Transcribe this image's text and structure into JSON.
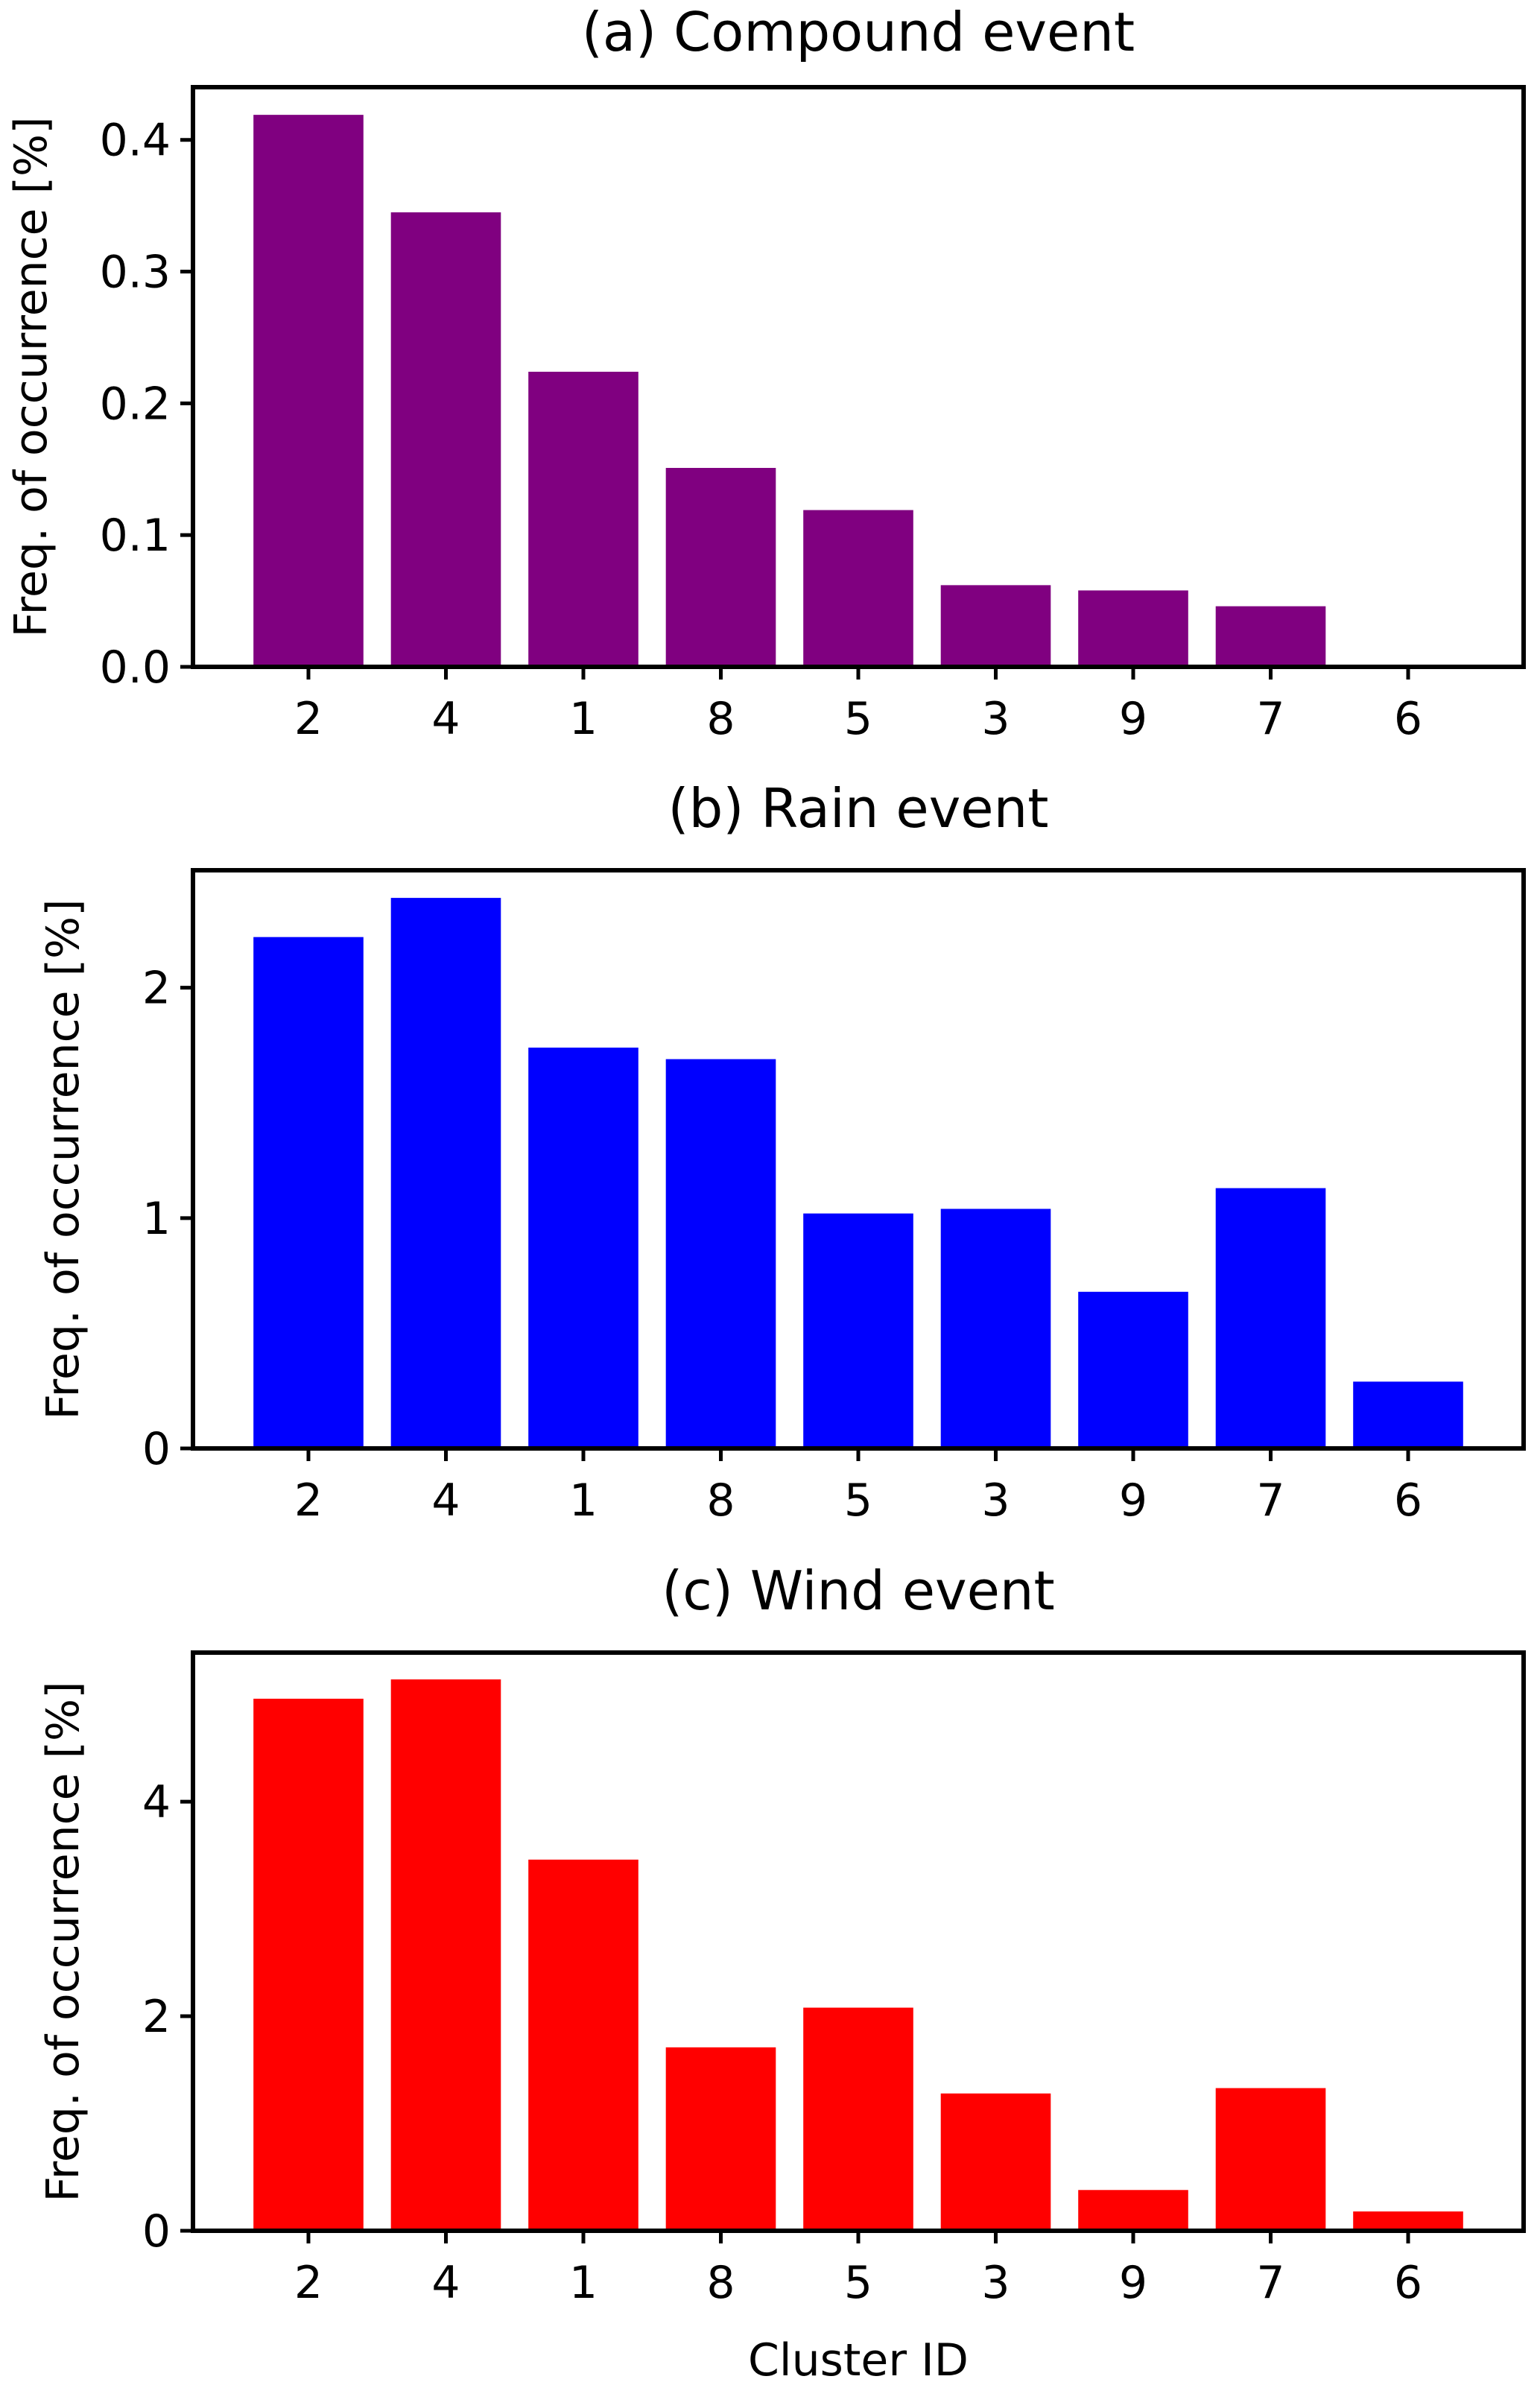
{
  "chart_data": [
    {
      "type": "bar",
      "title": "(a) Compound event",
      "xlabel": "",
      "ylabel": "Freq. of occurrence [%]",
      "categories": [
        "2",
        "4",
        "1",
        "8",
        "5",
        "3",
        "9",
        "7",
        "6"
      ],
      "values": [
        0.419,
        0.345,
        0.224,
        0.151,
        0.119,
        0.062,
        0.058,
        0.046,
        0.0
      ],
      "color": "#800080",
      "ylim": [
        0,
        0.44
      ],
      "yticks": [
        0.0,
        0.1,
        0.2,
        0.3,
        0.4
      ],
      "ytick_labels": [
        "0.0",
        "0.1",
        "0.2",
        "0.3",
        "0.4"
      ],
      "grid": false
    },
    {
      "type": "bar",
      "title": "(b) Rain event",
      "xlabel": "",
      "ylabel": "Freq. of occurrence [%]",
      "categories": [
        "2",
        "4",
        "1",
        "8",
        "5",
        "3",
        "9",
        "7",
        "6"
      ],
      "values": [
        2.22,
        2.39,
        1.74,
        1.69,
        1.02,
        1.04,
        0.68,
        1.13,
        0.29
      ],
      "color": "#0000ff",
      "ylim": [
        0,
        2.51
      ],
      "yticks": [
        0,
        1,
        2
      ],
      "ytick_labels": [
        "0",
        "1",
        "2"
      ],
      "grid": false
    },
    {
      "type": "bar",
      "title": "(c) Wind event",
      "xlabel": "Cluster ID",
      "ylabel": "Freq. of occurrence [%]",
      "categories": [
        "2",
        "4",
        "1",
        "8",
        "5",
        "3",
        "9",
        "7",
        "6"
      ],
      "values": [
        4.96,
        5.14,
        3.46,
        1.71,
        2.08,
        1.28,
        0.38,
        1.33,
        0.18
      ],
      "color": "#ff0000",
      "ylim": [
        0,
        5.39
      ],
      "yticks": [
        0,
        2,
        4
      ],
      "ytick_labels": [
        "0",
        "2",
        "4"
      ],
      "grid": false
    }
  ]
}
